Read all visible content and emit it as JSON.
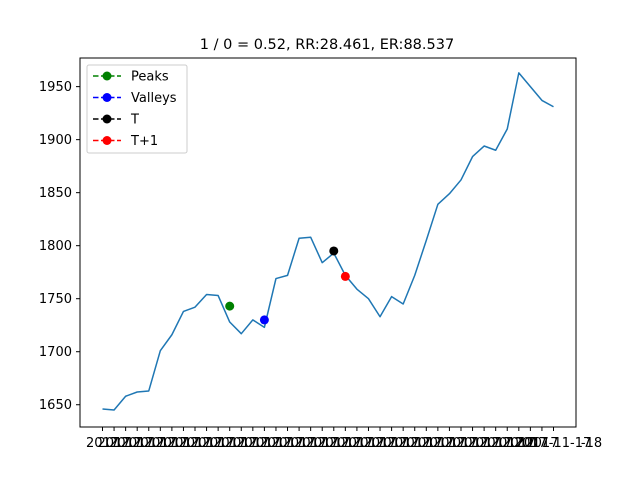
{
  "chart_data": {
    "type": "line",
    "title": "1 / 0 = 0.52, RR:28.461, ER:88.537",
    "ylim": [
      1629,
      1977
    ],
    "yticks": [
      1650,
      1700,
      1750,
      1800,
      1850,
      1900,
      1950
    ],
    "x_first_label": "2017",
    "x_last_label": "2017-11-17",
    "x_last_label_tail": "-18",
    "grid": false,
    "legend_position": "upper-left",
    "series": [
      {
        "color": "#1f77b4",
        "values": [
          1646,
          1645,
          1658,
          1662,
          1663,
          1701,
          1716,
          1738,
          1742,
          1754,
          1753,
          1728,
          1717,
          1730,
          1723,
          1769,
          1772,
          1807,
          1808,
          1784,
          1793,
          1772,
          1759,
          1750,
          1733,
          1752,
          1745,
          1772,
          1805,
          1839,
          1849,
          1862,
          1884,
          1894,
          1890,
          1910,
          1963,
          1950,
          1937,
          1931
        ]
      }
    ],
    "markers": [
      {
        "label": "Peaks",
        "color": "#008000",
        "index": 11,
        "value": 1743
      },
      {
        "label": "Valleys",
        "color": "#0000ff",
        "index": 14,
        "value": 1730
      },
      {
        "label": "T",
        "color": "#000000",
        "index": 20,
        "value": 1795
      },
      {
        "label": "T+1",
        "color": "#ff0000",
        "index": 21,
        "value": 1771
      }
    ]
  }
}
